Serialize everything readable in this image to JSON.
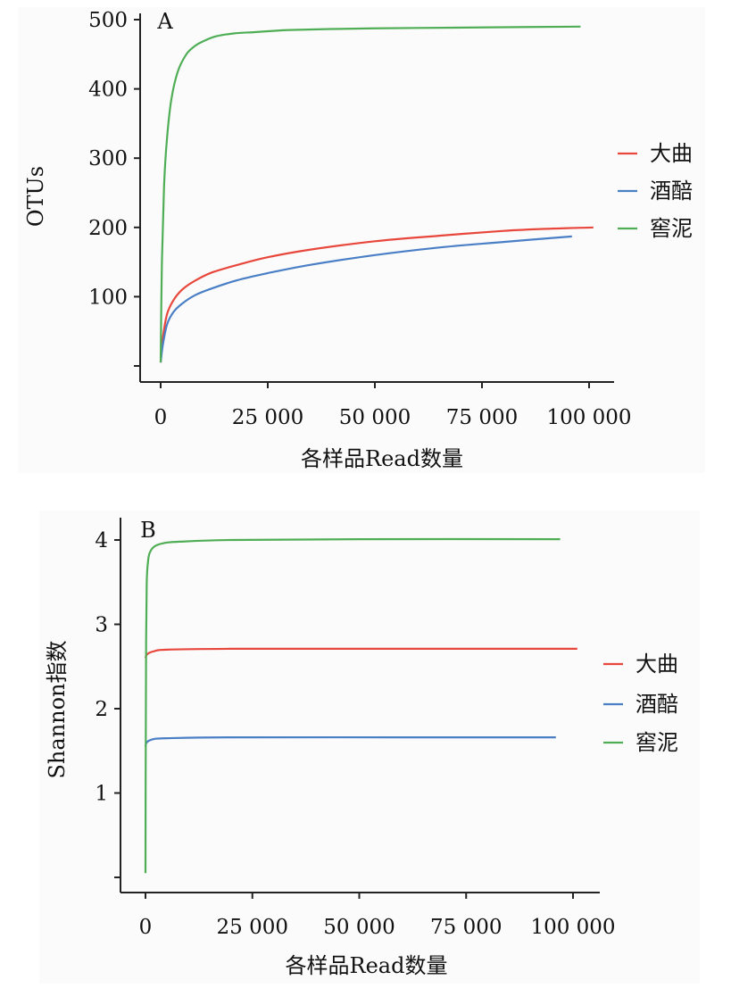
{
  "chart_data": [
    {
      "type": "line",
      "panel_label": "A",
      "xlabel": "各样品Read数量",
      "ylabel": "OTUs",
      "xlim": [
        0,
        105000
      ],
      "ylim": [
        -5,
        510
      ],
      "xticks": [
        0,
        25000,
        50000,
        75000,
        100000
      ],
      "xtick_labels": [
        "0",
        "25 000",
        "50 000",
        "75 000",
        "100 000"
      ],
      "yticks": [
        0,
        100,
        200,
        300,
        400,
        500
      ],
      "ytick_labels": [
        "",
        "100",
        "200",
        "300",
        "400",
        "500"
      ],
      "grid": false,
      "legend_position": "right",
      "series": [
        {
          "name": "大曲",
          "color": "#e8473c",
          "x": [
            0,
            500,
            1500,
            3000,
            5000,
            8000,
            12000,
            18000,
            25000,
            35000,
            50000,
            65000,
            80000,
            90000,
            101000
          ],
          "y": [
            5,
            40,
            75,
            95,
            110,
            123,
            135,
            146,
            157,
            168,
            180,
            188,
            195,
            198,
            200
          ]
        },
        {
          "name": "酒醅",
          "color": "#4a7fc6",
          "x": [
            0,
            500,
            1500,
            3000,
            5000,
            8000,
            12000,
            18000,
            25000,
            35000,
            50000,
            65000,
            80000,
            96000
          ],
          "y": [
            5,
            30,
            60,
            78,
            90,
            102,
            112,
            124,
            134,
            146,
            160,
            171,
            179,
            187
          ]
        },
        {
          "name": "窖泥",
          "color": "#4fae55",
          "x": [
            0,
            300,
            800,
            1500,
            2500,
            4000,
            6000,
            8000,
            10000,
            13000,
            17000,
            22000,
            30000,
            45000,
            60000,
            80000,
            98000
          ],
          "y": [
            5,
            150,
            260,
            330,
            385,
            425,
            450,
            462,
            469,
            476,
            480,
            482,
            485,
            487,
            488,
            489,
            490
          ]
        }
      ]
    },
    {
      "type": "line",
      "panel_label": "B",
      "xlabel": "各样品Read数量",
      "ylabel": "Shannon指数",
      "xlim": [
        0,
        105000
      ],
      "ylim": [
        -0.1,
        4.05
      ],
      "xticks": [
        0,
        25000,
        50000,
        75000,
        100000
      ],
      "xtick_labels": [
        "0",
        "25 000",
        "50 000",
        "75 000",
        "100 000"
      ],
      "yticks": [
        0,
        1,
        2,
        3,
        4
      ],
      "ytick_labels": [
        "",
        "1",
        "2",
        "3",
        "4"
      ],
      "grid": false,
      "legend_position": "right",
      "series": [
        {
          "name": "大曲",
          "color": "#e8473c",
          "x": [
            0,
            100,
            300,
            800,
            2000,
            5000,
            20000,
            60000,
            101000
          ],
          "y": [
            2.6,
            2.62,
            2.64,
            2.66,
            2.68,
            2.7,
            2.71,
            2.71,
            2.71
          ]
        },
        {
          "name": "酒醅",
          "color": "#4a7fc6",
          "x": [
            0,
            100,
            300,
            800,
            2000,
            5000,
            20000,
            60000,
            96000
          ],
          "y": [
            1.55,
            1.58,
            1.6,
            1.62,
            1.64,
            1.65,
            1.66,
            1.66,
            1.66
          ]
        },
        {
          "name": "窖泥",
          "color": "#4fae55",
          "x": [
            0,
            50,
            150,
            300,
            600,
            1000,
            2000,
            4000,
            8000,
            20000,
            50000,
            97000
          ],
          "y": [
            0.05,
            1.2,
            2.8,
            3.5,
            3.75,
            3.85,
            3.92,
            3.96,
            3.98,
            4.0,
            4.01,
            4.01
          ]
        }
      ]
    }
  ]
}
